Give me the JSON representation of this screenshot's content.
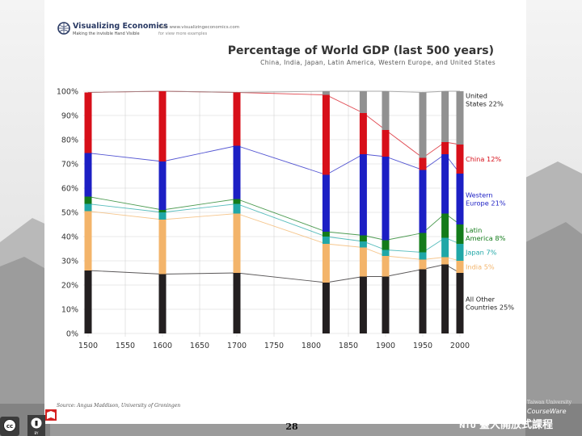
{
  "header": {
    "logo_title": "Visualizing Economics",
    "logo_tagline": "Making the invisible Hand Visible",
    "visit_line1": "Visit www.visualizingeconomics.com",
    "visit_line2": "for view more examples"
  },
  "footer": {
    "source": "Source: Angus Maddison, University of Groningen",
    "page_number": "28",
    "cc_badge": "cc",
    "by_badge": "BY",
    "ntu_label": "NTU",
    "ntu_chinese": "臺大開放式課程",
    "ntu_university": "Taiwan University",
    "ntu_courseware": "CourseWare"
  },
  "colors": {
    "us": "#919191",
    "china": "#d70f19",
    "western_europe": "#1c1fc4",
    "latin_america": "#137b1a",
    "japan": "#20a7a7",
    "india": "#f3b46a",
    "other": "#231f20"
  },
  "chart_data": {
    "type": "bar",
    "stacked": true,
    "title": "Percentage of World GDP (last 500 years)",
    "subtitle": "China, India, Japan, Latin America, Western Europe, and United States",
    "xlabel": "",
    "ylabel": "",
    "x": [
      1500,
      1600,
      1700,
      1820,
      1870,
      1900,
      1950,
      1980,
      2000
    ],
    "xlim": [
      1500,
      2000
    ],
    "ylim": [
      0,
      100
    ],
    "x_ticks": [
      "1500",
      "1550",
      "1600",
      "1650",
      "1700",
      "1750",
      "1800",
      "1850",
      "1900",
      "1950",
      "2000"
    ],
    "y_ticks": [
      "0%",
      "10%",
      "20%",
      "30%",
      "40%",
      "50%",
      "60%",
      "70%",
      "80%",
      "90%",
      "100%"
    ],
    "grid": true,
    "series": [
      {
        "key": "other",
        "name": "All Other Countries",
        "values": [
          26,
          24.5,
          25,
          21,
          23.5,
          23.5,
          26.5,
          28.5,
          25
        ]
      },
      {
        "key": "india",
        "name": "India",
        "values": [
          24.5,
          22.5,
          24.5,
          16,
          12,
          8.5,
          4,
          3,
          5
        ]
      },
      {
        "key": "japan",
        "name": "Japan",
        "values": [
          3,
          3,
          4,
          3,
          2.5,
          2.5,
          3,
          8,
          7
        ]
      },
      {
        "key": "latin_america",
        "name": "Latin America",
        "values": [
          3,
          1,
          2,
          2,
          2.5,
          4,
          8,
          10,
          8
        ]
      },
      {
        "key": "western_europe",
        "name": "Western Europe",
        "values": [
          18,
          20,
          22,
          23.5,
          33.5,
          34.5,
          26,
          24.5,
          21
        ]
      },
      {
        "key": "china",
        "name": "China",
        "values": [
          25,
          29,
          22,
          33,
          17,
          11,
          5,
          5,
          12
        ]
      },
      {
        "key": "us",
        "name": "United States",
        "values": [
          0,
          0,
          0,
          1.5,
          9,
          16,
          27,
          21,
          22
        ]
      }
    ],
    "legend": [
      {
        "key": "us",
        "line1": "United",
        "line2": "States 22%"
      },
      {
        "key": "china",
        "line1": "China 12%"
      },
      {
        "key": "western_europe",
        "line1": "Western",
        "line2": "Europe 21%"
      },
      {
        "key": "latin_america",
        "line1": "Latin",
        "line2": "America 8%"
      },
      {
        "key": "japan",
        "line1": "Japan 7%"
      },
      {
        "key": "india",
        "line1": "India 5%"
      },
      {
        "key": "other",
        "line1": "All Other",
        "line2": "Countries 25%"
      }
    ]
  }
}
